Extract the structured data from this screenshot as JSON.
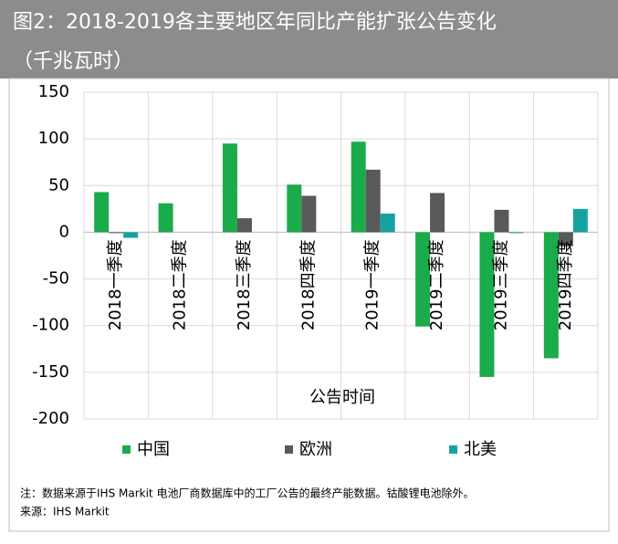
{
  "chart_data": {
    "type": "bar",
    "title": "图2：2018-2019各主要地区年同比产能扩张公告变化",
    "subtitle": "（千兆瓦时）",
    "x_label": "公告时间",
    "categories": [
      "2018一季度",
      "2018二季度",
      "2018三季度",
      "2018四季度",
      "2019一季度",
      "2019二季度",
      "2019三季度",
      "2019四季度"
    ],
    "series": [
      {
        "name": "中国",
        "color": "#1aab4b",
        "values": [
          43,
          31,
          95,
          51,
          97,
          -101,
          -155,
          -135
        ]
      },
      {
        "name": "欧洲",
        "color": "#595959",
        "values": [
          -1,
          null,
          15,
          39,
          67,
          42,
          24,
          -15
        ]
      },
      {
        "name": "北美",
        "color": "#17a2a2",
        "values": [
          -6,
          null,
          null,
          null,
          20,
          null,
          -1,
          25
        ]
      }
    ],
    "ylim": [
      -200,
      150
    ],
    "yticks": [
      -200,
      -150,
      -100,
      -50,
      0,
      50,
      100,
      150
    ],
    "grid": true,
    "legend": "bottom",
    "notes": [
      "注：数据来源于IHS Markit 电池厂商数据库中的工厂公告的最终产能数据。钴酸锂电池除外。",
      "来源：IHS Markit"
    ]
  }
}
